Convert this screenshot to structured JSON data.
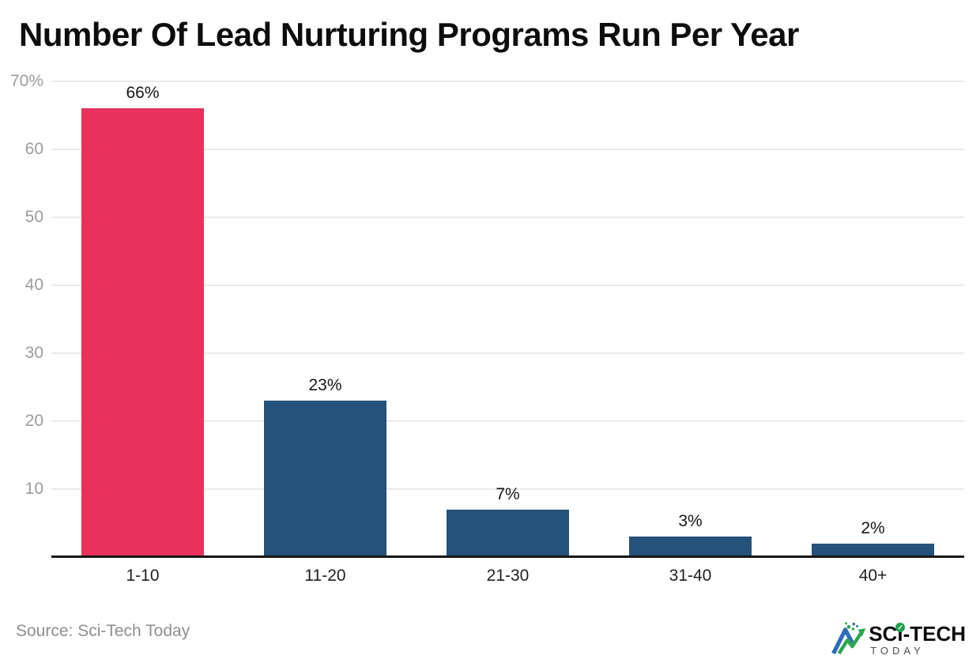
{
  "title": "Number Of Lead Nurturing Programs Run Per Year",
  "source": "Source: Sci-Tech Today",
  "logo": {
    "prefix": "SC",
    "i_letter": "i",
    "suffix": "-TECH",
    "tagline": "TODAY",
    "check_glyph": "✓"
  },
  "chart_data": {
    "type": "bar",
    "title": "Number Of Lead Nurturing Programs Run Per Year",
    "categories": [
      "1-10",
      "11-20",
      "21-30",
      "31-40",
      "40+"
    ],
    "values": [
      66,
      23,
      7,
      3,
      2
    ],
    "value_labels": [
      "66%",
      "23%",
      "7%",
      "3%",
      "2%"
    ],
    "xlabel": "",
    "ylabel": "",
    "ylim": [
      0,
      70
    ],
    "yticks": [
      10,
      20,
      30,
      40,
      50,
      60,
      70
    ],
    "ytick_labels": [
      "10",
      "20",
      "30",
      "40",
      "50",
      "60",
      "70%"
    ],
    "grid": true,
    "legend": false,
    "bar_colors": [
      "#e8325b",
      "#25527a",
      "#25527a",
      "#25527a",
      "#25527a"
    ],
    "colors": {
      "highlight": "#e8325b",
      "default": "#25527a",
      "gridline": "#eaeaea",
      "axis": "#161616",
      "tick_text": "#9c9c9c",
      "label_text": "#161616"
    }
  }
}
